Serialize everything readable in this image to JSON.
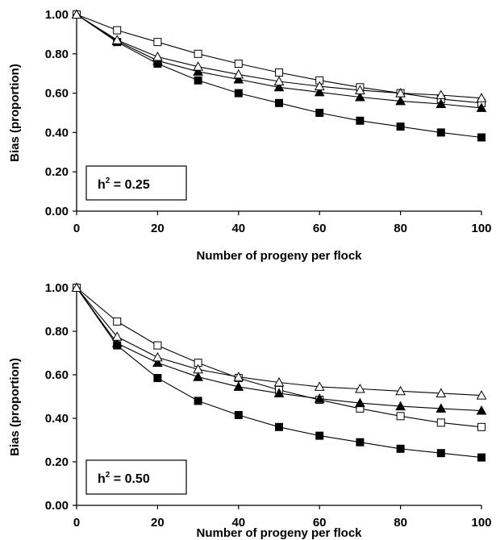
{
  "chart_data": [
    {
      "type": "line",
      "annotation": {
        "base": "h",
        "sup": "2",
        "rest": " = 0.25"
      },
      "xlabel": "Number of progeny per flock",
      "ylabel": "Bias (proportion)",
      "xlim": [
        0,
        100
      ],
      "ylim": [
        0,
        1
      ],
      "xticks": [
        "0",
        "20",
        "40",
        "60",
        "80",
        "100"
      ],
      "yticks": [
        "0.00",
        "0.20",
        "0.40",
        "0.60",
        "0.80",
        "1.00"
      ],
      "x": [
        0,
        10,
        20,
        30,
        40,
        50,
        60,
        70,
        80,
        90,
        100
      ],
      "series": [
        {
          "marker": "filled-square",
          "values": [
            1.0,
            0.86,
            0.75,
            0.665,
            0.6,
            0.55,
            0.5,
            0.46,
            0.43,
            0.4,
            0.375
          ]
        },
        {
          "marker": "open-square",
          "values": [
            1.0,
            0.92,
            0.86,
            0.8,
            0.75,
            0.705,
            0.665,
            0.63,
            0.6,
            0.57,
            0.55
          ]
        },
        {
          "marker": "filled-triangle",
          "values": [
            1.0,
            0.865,
            0.765,
            0.71,
            0.67,
            0.63,
            0.605,
            0.58,
            0.56,
            0.545,
            0.525
          ]
        },
        {
          "marker": "open-triangle",
          "values": [
            1.0,
            0.87,
            0.785,
            0.735,
            0.695,
            0.66,
            0.635,
            0.615,
            0.6,
            0.59,
            0.575
          ]
        }
      ]
    },
    {
      "type": "line",
      "annotation": {
        "base": "h",
        "sup": "2",
        "rest": " = 0.50"
      },
      "xlabel": "Number of progeny per flock",
      "ylabel": "Bias (proportion)",
      "xlim": [
        0,
        100
      ],
      "ylim": [
        0,
        1
      ],
      "xticks": [
        "0",
        "20",
        "40",
        "60",
        "80",
        "100"
      ],
      "yticks": [
        "0.00",
        "0.20",
        "0.40",
        "0.60",
        "0.80",
        "1.00"
      ],
      "x": [
        0,
        10,
        20,
        30,
        40,
        50,
        60,
        70,
        80,
        90,
        100
      ],
      "series": [
        {
          "marker": "filled-square",
          "values": [
            1.0,
            0.735,
            0.585,
            0.48,
            0.415,
            0.36,
            0.32,
            0.29,
            0.26,
            0.24,
            0.22
          ]
        },
        {
          "marker": "open-square",
          "values": [
            1.0,
            0.845,
            0.735,
            0.655,
            0.585,
            0.53,
            0.485,
            0.445,
            0.41,
            0.38,
            0.36
          ]
        },
        {
          "marker": "filled-triangle",
          "values": [
            1.0,
            0.745,
            0.655,
            0.59,
            0.545,
            0.515,
            0.49,
            0.47,
            0.455,
            0.445,
            0.435
          ]
        },
        {
          "marker": "open-triangle",
          "values": [
            1.0,
            0.775,
            0.68,
            0.625,
            0.59,
            0.565,
            0.545,
            0.535,
            0.525,
            0.515,
            0.505
          ]
        }
      ]
    }
  ]
}
